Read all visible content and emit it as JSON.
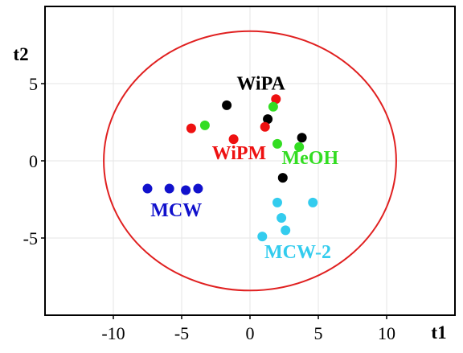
{
  "chart_data": {
    "type": "scatter",
    "title": "",
    "xlabel": "t1",
    "ylabel": "t2",
    "xlim": [
      -15,
      15
    ],
    "ylim": [
      -10,
      10
    ],
    "xticks": [
      -10,
      -5,
      0,
      5,
      10
    ],
    "yticks": [
      5,
      0,
      -5
    ],
    "x_tick_labels": [
      "-10",
      "-5",
      "0",
      "5",
      "10"
    ],
    "y_tick_labels": [
      "5",
      "0",
      "-5"
    ],
    "grid": true,
    "ellipse": {
      "cx": 0,
      "cy": 0,
      "rx": 10.7,
      "ry": 8.4,
      "color": "#e02020"
    },
    "series": [
      {
        "name": "WiPA",
        "color": "#000000",
        "label_pos": [
          0.8,
          4.6
        ],
        "points": [
          [
            -1.7,
            3.6
          ],
          [
            1.3,
            2.7
          ],
          [
            3.8,
            1.5
          ],
          [
            2.4,
            -1.1
          ]
        ]
      },
      {
        "name": "WiPM",
        "color": "#ee1111",
        "label_pos": [
          -0.8,
          0.1
        ],
        "points": [
          [
            -4.3,
            2.1
          ],
          [
            -1.2,
            1.4
          ],
          [
            1.1,
            2.2
          ],
          [
            1.9,
            4.0
          ]
        ]
      },
      {
        "name": "MeOH",
        "color": "#33dd22",
        "label_pos": [
          4.4,
          -0.2
        ],
        "points": [
          [
            -3.3,
            2.3
          ],
          [
            1.7,
            3.5
          ],
          [
            2.0,
            1.1
          ],
          [
            3.6,
            0.9
          ]
        ]
      },
      {
        "name": "MCW",
        "color": "#1111cc",
        "label_pos": [
          -5.4,
          -3.6
        ],
        "points": [
          [
            -7.5,
            -1.8
          ],
          [
            -5.9,
            -1.8
          ],
          [
            -4.7,
            -1.9
          ],
          [
            -3.8,
            -1.8
          ]
        ]
      },
      {
        "name": "MCW-2",
        "color": "#33ccee",
        "label_pos": [
          3.5,
          -6.3
        ],
        "points": [
          [
            2.0,
            -2.7
          ],
          [
            4.6,
            -2.7
          ],
          [
            2.3,
            -3.7
          ],
          [
            2.6,
            -4.5
          ],
          [
            0.9,
            -4.9
          ]
        ]
      }
    ]
  }
}
